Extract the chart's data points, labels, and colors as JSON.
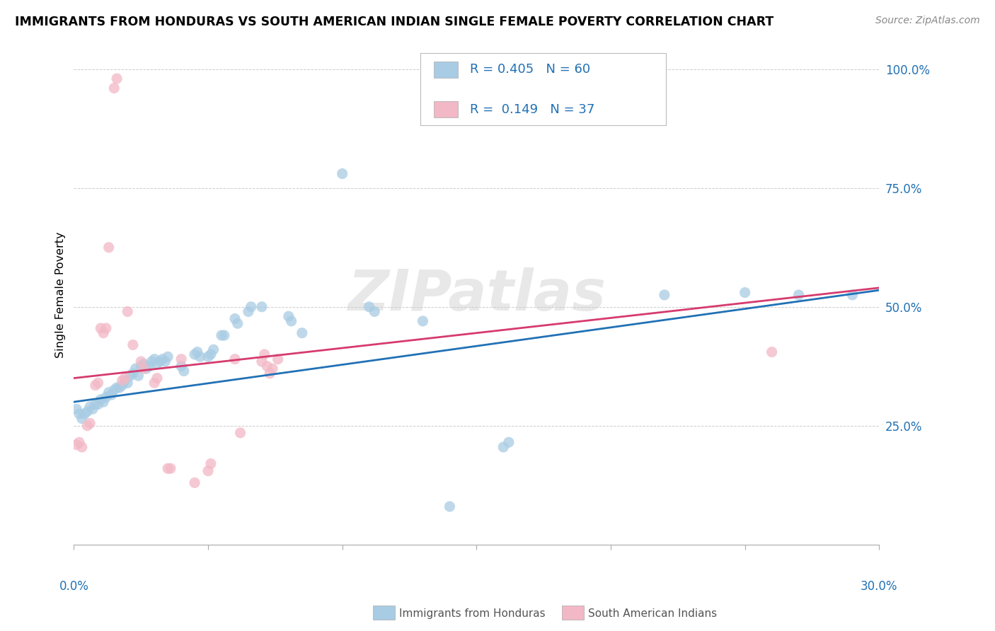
{
  "title": "IMMIGRANTS FROM HONDURAS VS SOUTH AMERICAN INDIAN SINGLE FEMALE POVERTY CORRELATION CHART",
  "source": "Source: ZipAtlas.com",
  "ylabel": "Single Female Poverty",
  "watermark": "ZIPatlas",
  "blue_color": "#a8cce4",
  "pink_color": "#f2b8c6",
  "blue_line_color": "#2171b5",
  "pink_line_color": "#d63b6e",
  "blue_scatter": [
    [
      0.001,
      0.285
    ],
    [
      0.002,
      0.275
    ],
    [
      0.003,
      0.265
    ],
    [
      0.004,
      0.275
    ],
    [
      0.005,
      0.28
    ],
    [
      0.006,
      0.29
    ],
    [
      0.007,
      0.285
    ],
    [
      0.008,
      0.295
    ],
    [
      0.009,
      0.295
    ],
    [
      0.01,
      0.305
    ],
    [
      0.011,
      0.3
    ],
    [
      0.012,
      0.31
    ],
    [
      0.013,
      0.32
    ],
    [
      0.014,
      0.315
    ],
    [
      0.015,
      0.325
    ],
    [
      0.016,
      0.33
    ],
    [
      0.017,
      0.33
    ],
    [
      0.018,
      0.335
    ],
    [
      0.019,
      0.345
    ],
    [
      0.02,
      0.34
    ],
    [
      0.021,
      0.355
    ],
    [
      0.022,
      0.36
    ],
    [
      0.023,
      0.37
    ],
    [
      0.024,
      0.355
    ],
    [
      0.025,
      0.375
    ],
    [
      0.026,
      0.38
    ],
    [
      0.027,
      0.37
    ],
    [
      0.028,
      0.375
    ],
    [
      0.029,
      0.385
    ],
    [
      0.03,
      0.39
    ],
    [
      0.031,
      0.38
    ],
    [
      0.032,
      0.385
    ],
    [
      0.033,
      0.39
    ],
    [
      0.034,
      0.385
    ],
    [
      0.035,
      0.395
    ],
    [
      0.04,
      0.375
    ],
    [
      0.041,
      0.365
    ],
    [
      0.045,
      0.4
    ],
    [
      0.046,
      0.405
    ],
    [
      0.047,
      0.395
    ],
    [
      0.05,
      0.395
    ],
    [
      0.051,
      0.4
    ],
    [
      0.052,
      0.41
    ],
    [
      0.055,
      0.44
    ],
    [
      0.056,
      0.44
    ],
    [
      0.06,
      0.475
    ],
    [
      0.061,
      0.465
    ],
    [
      0.065,
      0.49
    ],
    [
      0.066,
      0.5
    ],
    [
      0.07,
      0.5
    ],
    [
      0.08,
      0.48
    ],
    [
      0.081,
      0.47
    ],
    [
      0.085,
      0.445
    ],
    [
      0.1,
      0.78
    ],
    [
      0.11,
      0.5
    ],
    [
      0.112,
      0.49
    ],
    [
      0.13,
      0.47
    ],
    [
      0.14,
      0.08
    ],
    [
      0.16,
      0.205
    ],
    [
      0.162,
      0.215
    ],
    [
      0.22,
      0.525
    ],
    [
      0.25,
      0.53
    ],
    [
      0.27,
      0.525
    ],
    [
      0.29,
      0.525
    ]
  ],
  "pink_scatter": [
    [
      0.001,
      0.21
    ],
    [
      0.002,
      0.215
    ],
    [
      0.003,
      0.205
    ],
    [
      0.005,
      0.25
    ],
    [
      0.006,
      0.255
    ],
    [
      0.008,
      0.335
    ],
    [
      0.009,
      0.34
    ],
    [
      0.01,
      0.455
    ],
    [
      0.011,
      0.445
    ],
    [
      0.012,
      0.455
    ],
    [
      0.013,
      0.625
    ],
    [
      0.015,
      0.96
    ],
    [
      0.016,
      0.98
    ],
    [
      0.018,
      0.345
    ],
    [
      0.019,
      0.35
    ],
    [
      0.02,
      0.49
    ],
    [
      0.022,
      0.42
    ],
    [
      0.025,
      0.385
    ],
    [
      0.026,
      0.37
    ],
    [
      0.03,
      0.34
    ],
    [
      0.031,
      0.35
    ],
    [
      0.035,
      0.16
    ],
    [
      0.036,
      0.16
    ],
    [
      0.04,
      0.39
    ],
    [
      0.045,
      0.13
    ],
    [
      0.05,
      0.155
    ],
    [
      0.051,
      0.17
    ],
    [
      0.06,
      0.39
    ],
    [
      0.062,
      0.235
    ],
    [
      0.07,
      0.385
    ],
    [
      0.071,
      0.4
    ],
    [
      0.072,
      0.375
    ],
    [
      0.073,
      0.36
    ],
    [
      0.074,
      0.37
    ],
    [
      0.076,
      0.39
    ],
    [
      0.26,
      0.405
    ]
  ],
  "blue_line": [
    [
      0.0,
      0.3
    ],
    [
      0.3,
      0.535
    ]
  ],
  "pink_line": [
    [
      0.0,
      0.35
    ],
    [
      0.3,
      0.54
    ]
  ],
  "xlim": [
    0.0,
    0.3
  ],
  "ylim": [
    0.0,
    1.05
  ],
  "yticks": [
    0.0,
    0.25,
    0.5,
    0.75,
    1.0
  ],
  "ytick_labels": [
    "",
    "25.0%",
    "50.0%",
    "75.0%",
    "100.0%"
  ],
  "xtick_positions": [
    0.0,
    0.05,
    0.1,
    0.15,
    0.2,
    0.25,
    0.3
  ]
}
